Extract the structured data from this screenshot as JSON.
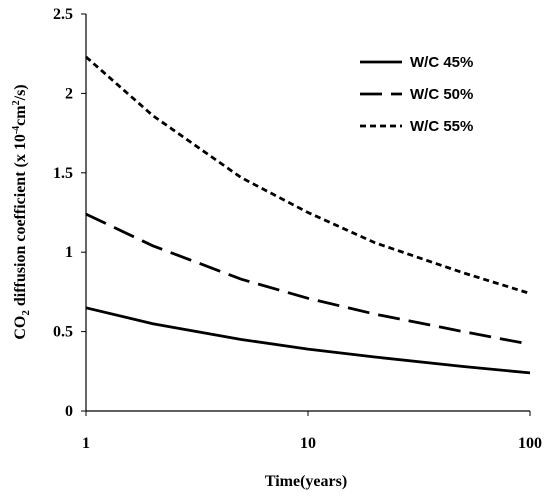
{
  "chart_data": {
    "type": "line",
    "title": "",
    "xlabel": "Time(years)",
    "ylabel": {
      "prefix": "CO",
      "subscript": "2",
      "middle": " diffusion coefficient (x 10",
      "superscript1": "-4",
      "unit": "cm",
      "superscript2": "2",
      "suffix": "/s)"
    },
    "xscale": "log",
    "xlim": [
      1,
      100
    ],
    "ylim": [
      0,
      2.5
    ],
    "xticks": [
      1,
      10,
      100
    ],
    "xtick_labels": [
      "1",
      "10",
      "100"
    ],
    "yticks": [
      0,
      0.5,
      1,
      1.5,
      2,
      2.5
    ],
    "ytick_labels": [
      "0",
      "0.5",
      "1",
      "1.5",
      "2",
      "2.5"
    ],
    "grid": false,
    "legend_position": "top-right",
    "series": [
      {
        "name": "W/C 45%",
        "dash": "solid",
        "x": [
          1,
          2,
          5,
          10,
          20,
          50,
          100
        ],
        "y": [
          0.65,
          0.55,
          0.45,
          0.39,
          0.34,
          0.28,
          0.24
        ]
      },
      {
        "name": "W/C 50%",
        "dash": "long-dash",
        "x": [
          1,
          2,
          5,
          10,
          20,
          50,
          100
        ],
        "y": [
          1.24,
          1.04,
          0.83,
          0.71,
          0.61,
          0.5,
          0.42
        ]
      },
      {
        "name": "W/C 55%",
        "dash": "short-dash",
        "x": [
          1,
          2,
          5,
          10,
          20,
          50,
          100
        ],
        "y": [
          2.23,
          1.86,
          1.47,
          1.25,
          1.06,
          0.87,
          0.74
        ]
      }
    ]
  }
}
